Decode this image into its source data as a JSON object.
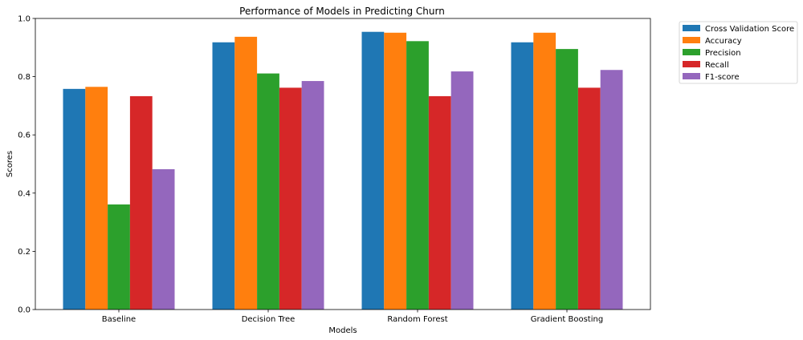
{
  "chart_data": {
    "type": "bar",
    "title": "Performance of Models in Predicting Churn",
    "xlabel": "Models",
    "ylabel": "Scores",
    "ylim": [
      0,
      1.0
    ],
    "yticks": [
      0.0,
      0.2,
      0.4,
      0.6,
      0.8,
      1.0
    ],
    "ytick_labels": [
      "0.0",
      "0.2",
      "0.4",
      "0.6",
      "0.8",
      "1.0"
    ],
    "categories": [
      "Baseline",
      "Decision Tree",
      "Random Forest",
      "Gradient Boosting"
    ],
    "grid": false,
    "legend_position": "outside-top-right",
    "series": [
      {
        "name": "Cross Validation Score",
        "color": "#1f77b4",
        "values": [
          0.758,
          0.918,
          0.954,
          0.918
        ]
      },
      {
        "name": "Accuracy",
        "color": "#ff7f0e",
        "values": [
          0.765,
          0.937,
          0.951,
          0.951
        ]
      },
      {
        "name": "Precision",
        "color": "#2ca02c",
        "values": [
          0.361,
          0.811,
          0.922,
          0.895
        ]
      },
      {
        "name": "Recall",
        "color": "#d62728",
        "values": [
          0.733,
          0.762,
          0.733,
          0.762
        ]
      },
      {
        "name": "F1-score",
        "color": "#9467bd",
        "values": [
          0.482,
          0.785,
          0.818,
          0.823
        ]
      }
    ]
  }
}
